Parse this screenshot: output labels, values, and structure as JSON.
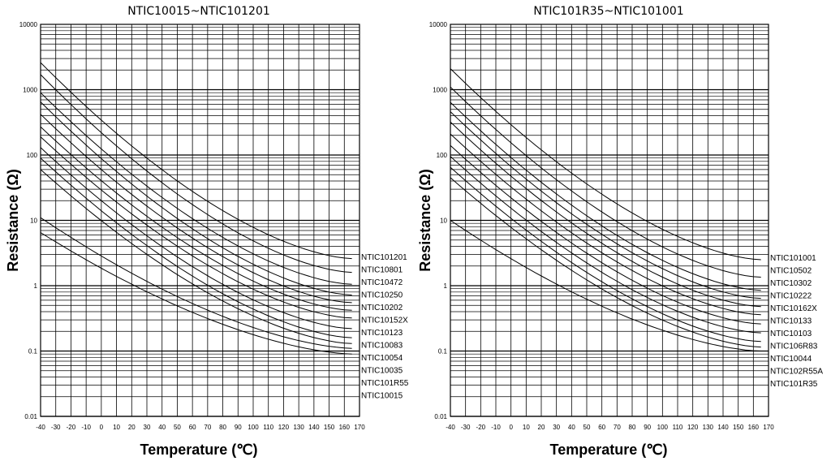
{
  "chart_data": [
    {
      "type": "line",
      "title": "NTIC10015~NTIC101201",
      "xlabel": "Temperature (℃)",
      "ylabel": "Resistance (Ω)",
      "xlim": [
        -40,
        170
      ],
      "ylim": [
        0.01,
        10000
      ],
      "yscale": "log",
      "grid": true,
      "x_ticks": [
        "-40",
        "-30",
        "-20",
        "-10",
        "0",
        "10",
        "20",
        "30",
        "40",
        "50",
        "60",
        "70",
        "80",
        "90",
        "100",
        "110",
        "120",
        "130",
        "140",
        "150",
        "160",
        "170"
      ],
      "y_ticks": [
        "10000",
        "1000",
        "100",
        "10",
        "1",
        "0.1",
        "0.01"
      ],
      "series": [
        {
          "name": "NTIC101201",
          "values": [
            {
              "x": -40,
              "y": 2600
            },
            {
              "x": 165,
              "y": 2.6
            }
          ]
        },
        {
          "name": "NTIC10801",
          "values": [
            {
              "x": -40,
              "y": 1700
            },
            {
              "x": 165,
              "y": 1.6
            }
          ]
        },
        {
          "name": "NTIC10472",
          "values": [
            {
              "x": -40,
              "y": 900
            },
            {
              "x": 165,
              "y": 1.05
            }
          ]
        },
        {
          "name": "NTIC10250",
          "values": [
            {
              "x": -40,
              "y": 650
            },
            {
              "x": 165,
              "y": 0.72
            }
          ]
        },
        {
          "name": "NTIC10202",
          "values": [
            {
              "x": -40,
              "y": 420
            },
            {
              "x": 165,
              "y": 0.55
            }
          ]
        },
        {
          "name": "NTIC10152X",
          "values": [
            {
              "x": -40,
              "y": 270
            },
            {
              "x": 165,
              "y": 0.42
            }
          ]
        },
        {
          "name": "NTIC10123",
          "values": [
            {
              "x": -40,
              "y": 190
            },
            {
              "x": 165,
              "y": 0.32
            }
          ]
        },
        {
          "name": "NTIC10083",
          "values": [
            {
              "x": -40,
              "y": 130
            },
            {
              "x": 165,
              "y": 0.22
            }
          ]
        },
        {
          "name": "NTIC10054",
          "values": [
            {
              "x": -40,
              "y": 90
            },
            {
              "x": 165,
              "y": 0.16
            }
          ]
        },
        {
          "name": "NTIC10035",
          "values": [
            {
              "x": -40,
              "y": 60
            },
            {
              "x": 165,
              "y": 0.13
            }
          ]
        },
        {
          "name": "NTIC101R55",
          "values": [
            {
              "x": -40,
              "y": 11
            },
            {
              "x": 165,
              "y": 0.11
            }
          ]
        },
        {
          "name": "NTIC10015",
          "values": [
            {
              "x": -40,
              "y": 6.5
            },
            {
              "x": 165,
              "y": 0.09
            }
          ]
        }
      ]
    },
    {
      "type": "line",
      "title": "NTIC101R35~NTIC101001",
      "xlabel": "Temperature (℃)",
      "ylabel": "Resistance (Ω)",
      "xlim": [
        -40,
        170
      ],
      "ylim": [
        0.01,
        10000
      ],
      "yscale": "log",
      "grid": true,
      "x_ticks": [
        "-40",
        "-30",
        "-20",
        "-10",
        "0",
        "10",
        "20",
        "30",
        "40",
        "50",
        "60",
        "70",
        "80",
        "90",
        "100",
        "110",
        "120",
        "130",
        "140",
        "150",
        "160",
        "170"
      ],
      "y_ticks": [
        "10000",
        "1000",
        "100",
        "10",
        "1",
        "0.1",
        "0.01"
      ],
      "series": [
        {
          "name": "NTIC101001",
          "values": [
            {
              "x": -40,
              "y": 2100
            },
            {
              "x": 165,
              "y": 2.5
            }
          ]
        },
        {
          "name": "NTIC10502",
          "values": [
            {
              "x": -40,
              "y": 1100
            },
            {
              "x": 165,
              "y": 1.35
            }
          ]
        },
        {
          "name": "NTIC10302",
          "values": [
            {
              "x": -40,
              "y": 640
            },
            {
              "x": 165,
              "y": 0.85
            }
          ]
        },
        {
          "name": "NTIC10222",
          "values": [
            {
              "x": -40,
              "y": 460
            },
            {
              "x": 165,
              "y": 0.64
            }
          ]
        },
        {
          "name": "NTIC10162X",
          "values": [
            {
              "x": -40,
              "y": 320
            },
            {
              "x": 165,
              "y": 0.48
            }
          ]
        },
        {
          "name": "NTIC10133",
          "values": [
            {
              "x": -40,
              "y": 210
            },
            {
              "x": 165,
              "y": 0.36
            }
          ]
        },
        {
          "name": "NTIC10103",
          "values": [
            {
              "x": -40,
              "y": 140
            },
            {
              "x": 165,
              "y": 0.26
            }
          ]
        },
        {
          "name": "NTIC106R83",
          "values": [
            {
              "x": -40,
              "y": 95
            },
            {
              "x": 165,
              "y": 0.19
            }
          ]
        },
        {
          "name": "NTIC10044",
          "values": [
            {
              "x": -40,
              "y": 65
            },
            {
              "x": 165,
              "y": 0.14
            }
          ]
        },
        {
          "name": "NTIC102R55A",
          "values": [
            {
              "x": -40,
              "y": 45
            },
            {
              "x": 165,
              "y": 0.115
            }
          ]
        },
        {
          "name": "NTIC101R35",
          "values": [
            {
              "x": -40,
              "y": 10
            },
            {
              "x": 165,
              "y": 0.1
            }
          ]
        }
      ]
    }
  ]
}
